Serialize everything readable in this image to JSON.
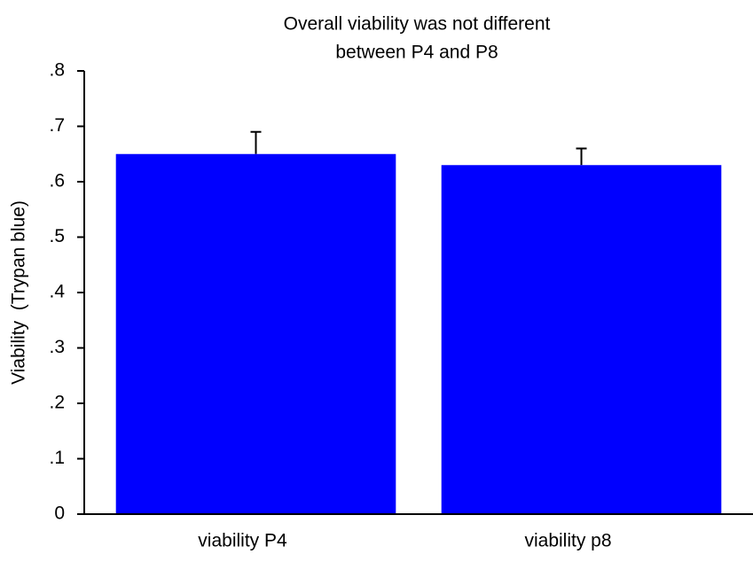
{
  "chart_data": {
    "type": "bar",
    "title": [
      "Overall viability was not different",
      "between P4 and P8"
    ],
    "y_label": "Viability  (Trypan blue)",
    "categories": [
      "viability P4",
      "viability p8"
    ],
    "values": [
      0.65,
      0.63
    ],
    "errors": [
      0.04,
      0.03
    ],
    "color": "#0000ff",
    "ylim": [
      0,
      0.8
    ],
    "yticks": [
      0,
      {
        "value": 0.1,
        "label": ".1"
      },
      {
        "value": 0.2,
        "label": ".2"
      },
      {
        "value": 0.3,
        "label": ".3"
      },
      {
        "value": 0.4,
        "label": ".4"
      },
      {
        "value": 0.5,
        "label": ".5"
      },
      {
        "value": 0.6,
        "label": ".6"
      },
      {
        "value": 0.7,
        "label": ".7"
      },
      {
        "value": 0.8,
        "label": ".8"
      }
    ],
    "grid": false
  }
}
